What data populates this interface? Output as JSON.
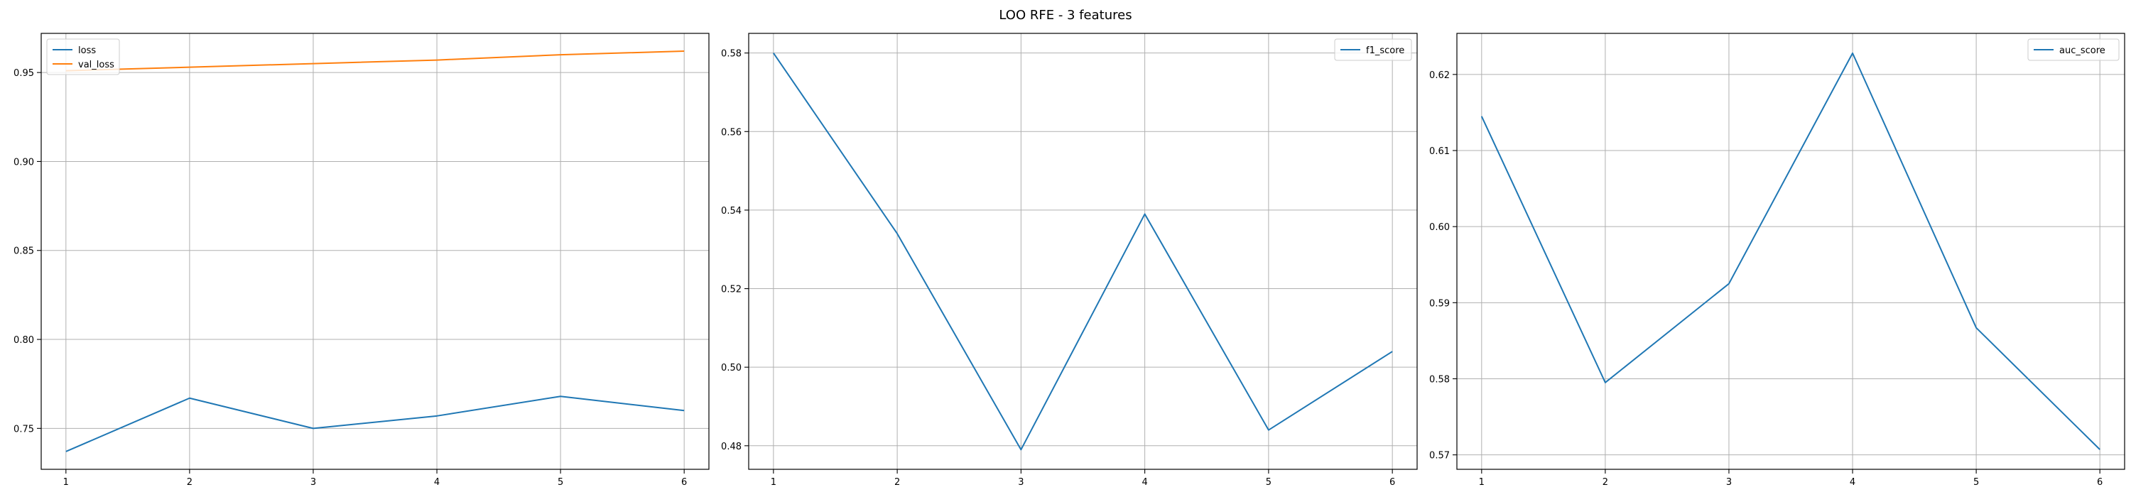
{
  "figure": {
    "title": "LOO RFE - 3 features"
  },
  "colors": {
    "blue": "#1f77b4",
    "orange": "#ff7f0e"
  },
  "chart_data": [
    {
      "type": "line",
      "x": [
        1,
        2,
        3,
        4,
        5,
        6
      ],
      "series": [
        {
          "name": "loss",
          "color": "#1f77b4",
          "values": [
            0.737,
            0.767,
            0.75,
            0.757,
            0.768,
            0.76
          ]
        },
        {
          "name": "val_loss",
          "color": "#ff7f0e",
          "values": [
            0.951,
            0.953,
            0.955,
            0.957,
            0.96,
            0.962
          ]
        }
      ],
      "xlim": [
        0.8,
        6.2
      ],
      "ylim": [
        0.727,
        0.972
      ],
      "yticks": [
        0.75,
        0.8,
        0.85,
        0.9,
        0.95
      ],
      "ytick_labels": [
        "0.75",
        "0.80",
        "0.85",
        "0.90",
        "0.95"
      ],
      "xticks": [
        1,
        2,
        3,
        4,
        5,
        6
      ],
      "xtick_labels": [
        "1",
        "2",
        "3",
        "4",
        "5",
        "6"
      ],
      "grid": true,
      "legend": "upper left"
    },
    {
      "type": "line",
      "x": [
        1,
        2,
        3,
        4,
        5,
        6
      ],
      "series": [
        {
          "name": "f1_score",
          "color": "#1f77b4",
          "values": [
            0.58,
            0.534,
            0.479,
            0.539,
            0.484,
            0.504
          ]
        }
      ],
      "xlim": [
        0.8,
        6.2
      ],
      "ylim": [
        0.474,
        0.585
      ],
      "yticks": [
        0.48,
        0.5,
        0.52,
        0.54,
        0.56,
        0.58
      ],
      "ytick_labels": [
        "0.48",
        "0.50",
        "0.52",
        "0.54",
        "0.56",
        "0.58"
      ],
      "xticks": [
        1,
        2,
        3,
        4,
        5,
        6
      ],
      "xtick_labels": [
        "1",
        "2",
        "3",
        "4",
        "5",
        "6"
      ],
      "grid": true,
      "legend": "upper right"
    },
    {
      "type": "line",
      "x": [
        1,
        2,
        3,
        4,
        5,
        6
      ],
      "series": [
        {
          "name": "auc_score",
          "color": "#1f77b4",
          "values": [
            0.6145,
            0.5795,
            0.5925,
            0.6228,
            0.5867,
            0.5707
          ]
        }
      ],
      "xlim": [
        0.8,
        6.2
      ],
      "ylim": [
        0.5681,
        0.6254
      ],
      "yticks": [
        0.57,
        0.58,
        0.59,
        0.6,
        0.61,
        0.62
      ],
      "ytick_labels": [
        "0.57",
        "0.58",
        "0.59",
        "0.60",
        "0.61",
        "0.62"
      ],
      "xticks": [
        1,
        2,
        3,
        4,
        5,
        6
      ],
      "xtick_labels": [
        "1",
        "2",
        "3",
        "4",
        "5",
        "6"
      ],
      "grid": true,
      "legend": "upper right"
    }
  ]
}
